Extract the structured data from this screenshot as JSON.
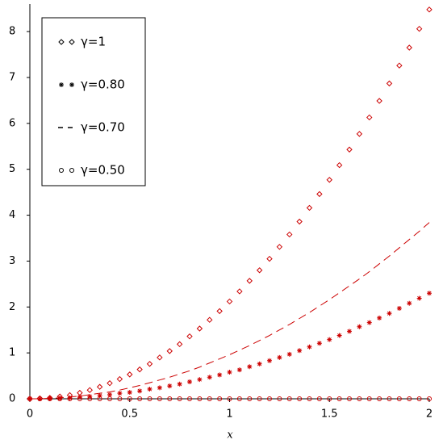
{
  "chart_data": {
    "type": "scatter",
    "xlabel": "x",
    "x": [
      0,
      0.05,
      0.1,
      0.15,
      0.2,
      0.25,
      0.3,
      0.35,
      0.4,
      0.45,
      0.5,
      0.55,
      0.6,
      0.65,
      0.7,
      0.75,
      0.8,
      0.85,
      0.9,
      0.95,
      1,
      1.05,
      1.1,
      1.15,
      1.2,
      1.25,
      1.3,
      1.35,
      1.4,
      1.45,
      1.5,
      1.55,
      1.6,
      1.65,
      1.7,
      1.75,
      1.8,
      1.85,
      1.9,
      1.95,
      2
    ],
    "series": [
      {
        "name": "γ=1",
        "color": "#cc0000",
        "marker": "diamond",
        "values": [
          0,
          0.01,
          0.02,
          0.05,
          0.08,
          0.13,
          0.19,
          0.26,
          0.34,
          0.43,
          0.53,
          0.64,
          0.76,
          0.9,
          1.04,
          1.19,
          1.36,
          1.53,
          1.72,
          1.91,
          2.12,
          2.34,
          2.57,
          2.8,
          3.05,
          3.31,
          3.58,
          3.86,
          4.16,
          4.46,
          4.77,
          5.09,
          5.43,
          5.77,
          6.13,
          6.49,
          6.87,
          7.26,
          7.65,
          8.06,
          8.48
        ]
      },
      {
        "name": "γ=0.80",
        "color": "#cc0000",
        "marker": "asterisk",
        "values": [
          0,
          0,
          0.01,
          0.01,
          0.02,
          0.04,
          0.05,
          0.07,
          0.09,
          0.12,
          0.14,
          0.17,
          0.21,
          0.24,
          0.28,
          0.32,
          0.37,
          0.42,
          0.47,
          0.52,
          0.58,
          0.63,
          0.7,
          0.76,
          0.83,
          0.9,
          0.97,
          1.05,
          1.13,
          1.21,
          1.29,
          1.38,
          1.47,
          1.57,
          1.66,
          1.76,
          1.86,
          1.97,
          2.08,
          2.19,
          2.3
        ]
      },
      {
        "name": "γ=0.70",
        "color": "#cc0000",
        "marker": "dash",
        "values": [
          0,
          0,
          0.01,
          0.02,
          0.04,
          0.06,
          0.09,
          0.12,
          0.15,
          0.19,
          0.24,
          0.29,
          0.35,
          0.41,
          0.47,
          0.54,
          0.61,
          0.69,
          0.78,
          0.87,
          0.96,
          1.06,
          1.16,
          1.27,
          1.38,
          1.5,
          1.62,
          1.75,
          1.88,
          2.02,
          2.16,
          2.31,
          2.46,
          2.61,
          2.77,
          2.94,
          3.11,
          3.29,
          3.47,
          3.65,
          3.84
        ]
      },
      {
        "name": "γ=0.50",
        "color": "#cc0000",
        "marker": "circle",
        "values": [
          0,
          0,
          0,
          0,
          0,
          0,
          0,
          0,
          0,
          0,
          0,
          0,
          0,
          0,
          0,
          0,
          0,
          0,
          0,
          0,
          0,
          0,
          0,
          0,
          0,
          0,
          0,
          0,
          0,
          0,
          0,
          0,
          0,
          0,
          0,
          0,
          0,
          0,
          0,
          0,
          0
        ]
      }
    ],
    "xlim": [
      0,
      2
    ],
    "ylim": [
      0,
      8.6
    ],
    "xticks": [
      0,
      0.5,
      1,
      1.5,
      2
    ],
    "yticks": [
      0,
      1,
      2,
      3,
      4,
      5,
      6,
      7,
      8
    ],
    "legend": "top-left",
    "legend_marker_color": "#000000",
    "axis_color": "#000000"
  }
}
